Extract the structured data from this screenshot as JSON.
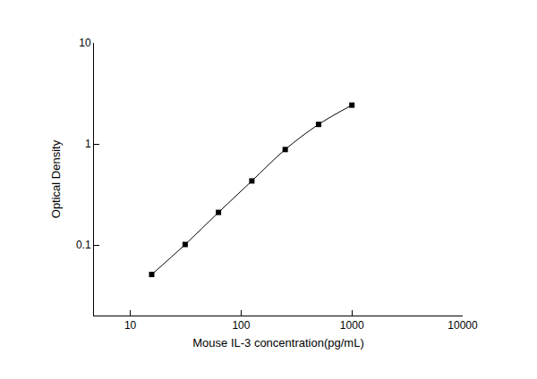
{
  "chart_data": {
    "type": "scatter",
    "x_label": "Mouse IL-3 concentration(pg/mL)",
    "y_label": "Optical Density",
    "log": true,
    "grid": false,
    "x": [
      15.6,
      31.25,
      62.5,
      125,
      250,
      500,
      1000
    ],
    "series": [
      {
        "color": "#000000",
        "marker": "square",
        "line_style": "solid",
        "values": [
          0.051,
          0.101,
          0.21,
          0.43,
          0.88,
          1.56,
          2.42
        ]
      }
    ],
    "xlim": [
      4.7,
      10000
    ],
    "xticks": [
      10,
      100,
      1000,
      10000
    ],
    "ylim": [
      0.02,
      10
    ],
    "yticks": [
      0.1,
      1,
      10
    ]
  }
}
